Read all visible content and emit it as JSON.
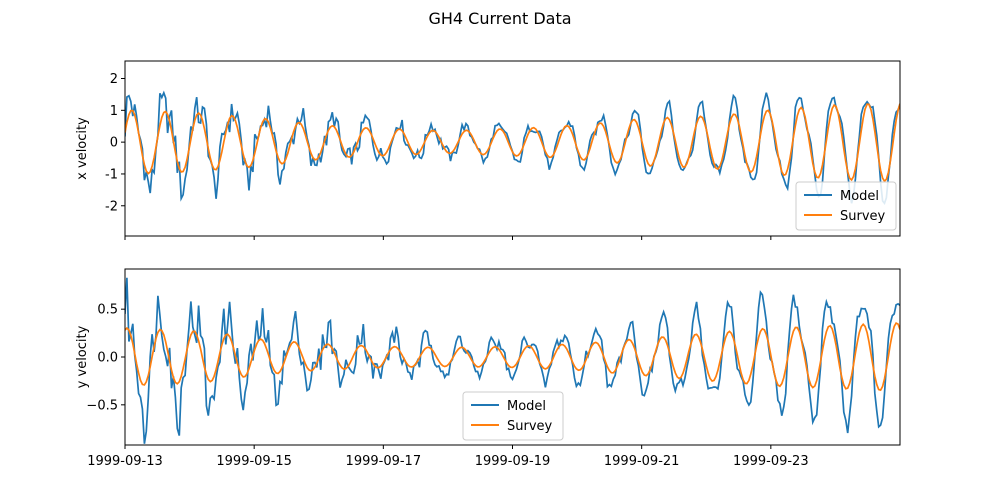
{
  "figure": {
    "title": "GH4 Current Data"
  },
  "chart_data": [
    {
      "type": "line",
      "ylabel": "x velocity",
      "xlim": [
        "1999-09-13",
        "1999-09-25T00:00"
      ],
      "ylim": [
        -2.95,
        2.55
      ],
      "yticks": [
        2,
        1,
        0,
        -1,
        -2
      ],
      "xticks": [
        "1999-09-13",
        "1999-09-15",
        "1999-09-17",
        "1999-09-19",
        "1999-09-21",
        "1999-09-23"
      ],
      "show_xtick_labels": false,
      "legend": {
        "placement": "lower right"
      },
      "series": [
        {
          "name": "Model",
          "color": "#1f77b4",
          "amp_scale": 1.0
        },
        {
          "name": "Survey",
          "color": "#ff7f0e",
          "amp_scale": 0.78
        }
      ]
    },
    {
      "type": "line",
      "ylabel": "y velocity",
      "xlim": [
        "1999-09-13",
        "1999-09-25T00:00"
      ],
      "ylim": [
        -0.92,
        0.92
      ],
      "yticks": [
        0.5,
        0.0,
        -0.5
      ],
      "ytick_labels": [
        "0.5",
        "0.0",
        "−0.5"
      ],
      "xticks": [
        "1999-09-13",
        "1999-09-15",
        "1999-09-17",
        "1999-09-19",
        "1999-09-21",
        "1999-09-23"
      ],
      "show_xtick_labels": true,
      "legend": {
        "placement": "lower center"
      },
      "series": [
        {
          "name": "Model",
          "color": "#1f77b4",
          "amp_scale": 1.0
        },
        {
          "name": "Survey",
          "color": "#ff7f0e",
          "amp_scale": 0.55
        }
      ]
    }
  ]
}
